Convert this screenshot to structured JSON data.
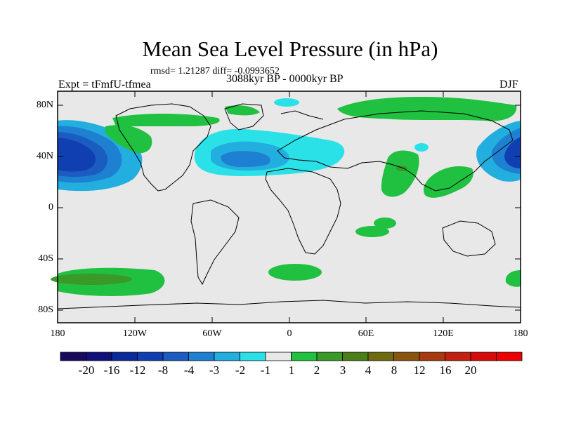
{
  "title": "Mean Sea Level Pressure (in hPa)",
  "stats": "rmsd= 1.21287 diff= -0.0993652",
  "experiment": "Expt = tFmfU-tfmea",
  "period": "3088kyr BP - 0000kyr BP",
  "season": "DJF",
  "map": {
    "lat_labels": [
      "80N",
      "40N",
      "0",
      "40S",
      "80S"
    ],
    "lon_labels": [
      "180",
      "120W",
      "60W",
      "0",
      "60E",
      "120E",
      "180"
    ],
    "land_color": "#e8e8e8",
    "coast_color": "#000000"
  },
  "colorbar": {
    "colors": [
      "#1a0a5e",
      "#10107a",
      "#0a2a9a",
      "#0f3fb0",
      "#1a5cc0",
      "#1e80d0",
      "#23aee0",
      "#2be1e8",
      "#e8e8e8",
      "#20c040",
      "#3a9a28",
      "#4a7e18",
      "#6e6a10",
      "#8a5410",
      "#a83a10",
      "#c22010",
      "#d80a0a",
      "#ee0000"
    ],
    "labels": [
      "-20",
      "-16",
      "-12",
      "-8",
      "-4",
      "-3",
      "-2",
      "-1",
      "1",
      "2",
      "3",
      "4",
      "8",
      "12",
      "16",
      "20"
    ]
  }
}
